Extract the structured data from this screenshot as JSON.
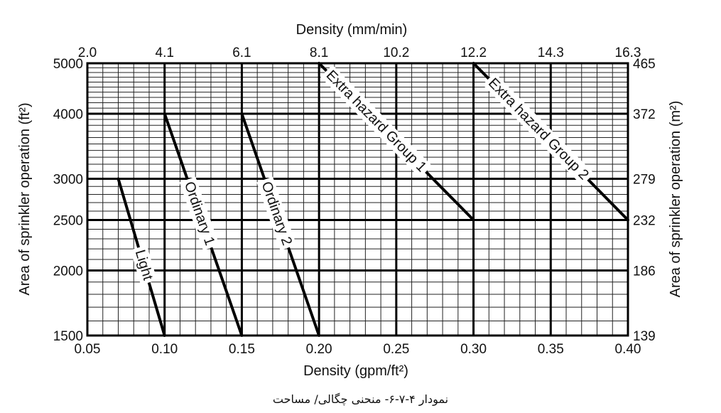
{
  "chart_data": {
    "type": "line",
    "x_bottom_label": "Density (gpm/ft²)",
    "x_top_label": "Density (mm/min)",
    "y_left_label": "Area of sprinkler operation (ft²)",
    "y_right_label": "Area of sprinkler operation (m²)",
    "xlim": [
      0.05,
      0.4
    ],
    "ylim": [
      1500,
      5000
    ],
    "y_scale": "log",
    "grid": true,
    "x_bottom_ticks": [
      "0.05",
      "0.10",
      "0.15",
      "0.20",
      "0.25",
      "0.30",
      "0.35",
      "0.40"
    ],
    "x_top_ticks": [
      "2.0",
      "4.1",
      "6.1",
      "8.1",
      "10.2",
      "12.2",
      "14.3",
      "16.3"
    ],
    "y_left_ticks": [
      {
        "value": 5000,
        "label": "5000"
      },
      {
        "value": 4000,
        "label": "4000"
      },
      {
        "value": 3000,
        "label": "3000"
      },
      {
        "value": 2500,
        "label": "2500"
      },
      {
        "value": 2000,
        "label": "2000"
      },
      {
        "value": 1500,
        "label": "1500"
      }
    ],
    "y_right_ticks": [
      {
        "value": 5000,
        "label": "465"
      },
      {
        "value": 4000,
        "label": "372"
      },
      {
        "value": 3000,
        "label": "279"
      },
      {
        "value": 2500,
        "label": "232"
      },
      {
        "value": 2000,
        "label": "186"
      },
      {
        "value": 1500,
        "label": "139"
      }
    ],
    "series": [
      {
        "name": "Light",
        "points": [
          [
            0.07,
            3000
          ],
          [
            0.1,
            1500
          ]
        ]
      },
      {
        "name": "Ordinary 1",
        "points": [
          [
            0.1,
            4000
          ],
          [
            0.15,
            1500
          ]
        ]
      },
      {
        "name": "Ordinary 2",
        "points": [
          [
            0.15,
            4000
          ],
          [
            0.2,
            1500
          ]
        ]
      },
      {
        "name": "Extra hazard Group 1",
        "points": [
          [
            0.2,
            5000
          ],
          [
            0.3,
            2500
          ]
        ]
      },
      {
        "name": "Extra hazard Group 2",
        "points": [
          [
            0.3,
            5000
          ],
          [
            0.4,
            2500
          ]
        ]
      }
    ]
  },
  "caption": "نمودار ۴-۷-۶- منحنی چگالی/ مساحت"
}
